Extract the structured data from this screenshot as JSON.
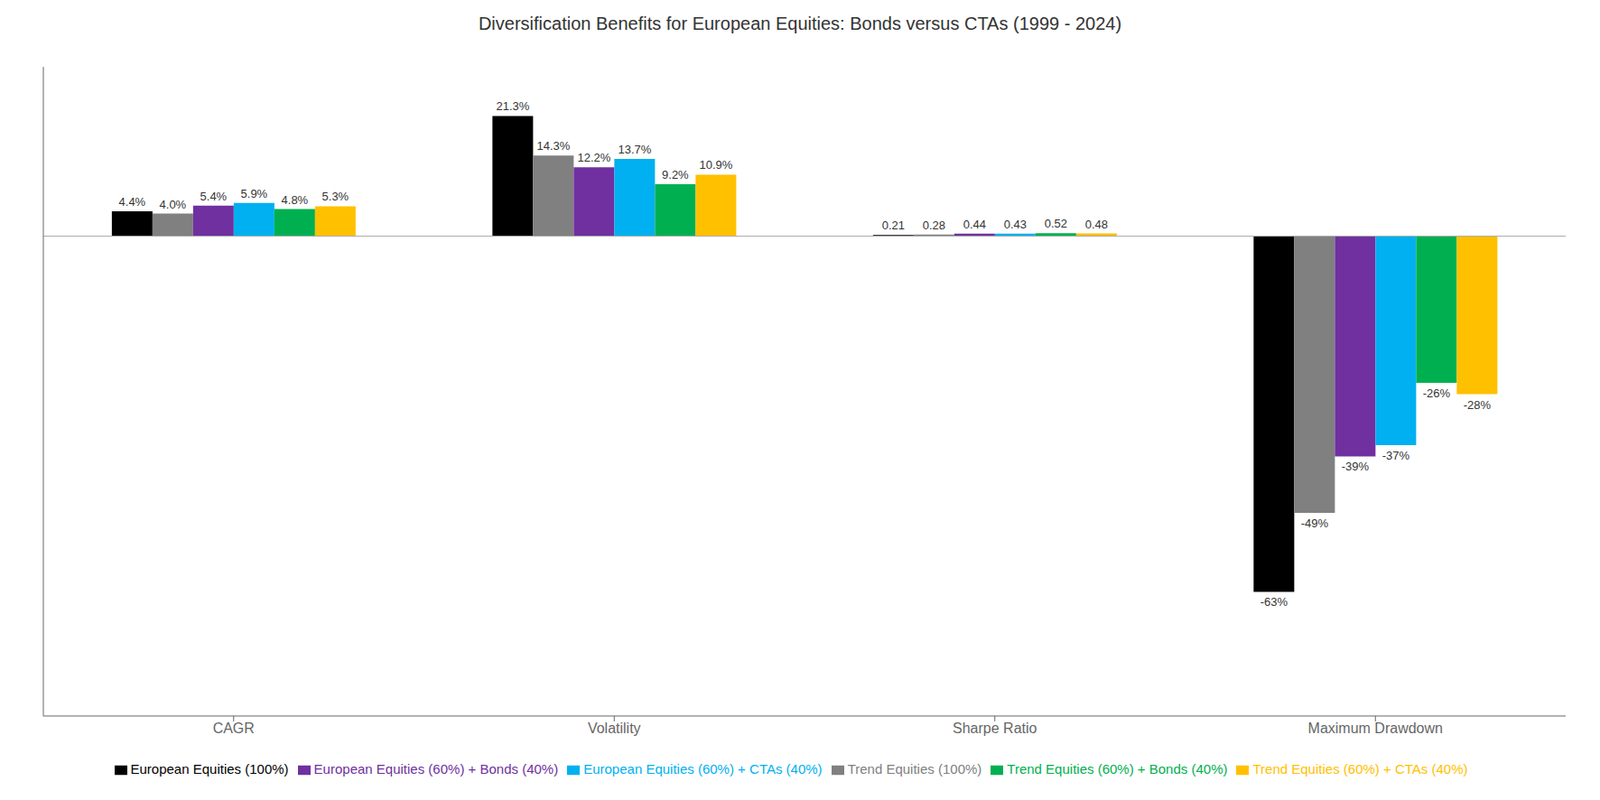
{
  "chart_data": {
    "type": "bar",
    "title": "Diversification Benefits for European Equities: Bonds versus CTAs (1999 - 2024)",
    "categories": [
      "CAGR",
      "Volatility",
      "Sharpe Ratio",
      "Maximum Drawdown"
    ],
    "series": [
      {
        "name": "European Equities (100%)",
        "color": "#000000",
        "values": [
          4.4,
          21.3,
          0.21,
          -63
        ],
        "value_labels": [
          "4.4%",
          "21.3%",
          "0.21",
          "-63%"
        ]
      },
      {
        "name": "Trend Equities (100%)",
        "color": "#808080",
        "values": [
          4.0,
          14.3,
          0.28,
          -49
        ],
        "value_labels": [
          "4.0%",
          "14.3%",
          "0.28",
          "-49%"
        ]
      },
      {
        "name": "European Equities (60%) + Bonds (40%)",
        "color": "#7030A0",
        "values": [
          5.4,
          12.2,
          0.44,
          -39
        ],
        "value_labels": [
          "5.4%",
          "12.2%",
          "0.44",
          "-39%"
        ]
      },
      {
        "name": "European Equities (60%) + CTAs (40%)",
        "color": "#00B0F0",
        "values": [
          5.9,
          13.7,
          0.43,
          -37
        ],
        "value_labels": [
          "5.9%",
          "13.7%",
          "0.43",
          "-37%"
        ]
      },
      {
        "name": "Trend Equities (60%) + Bonds (40%)",
        "color": "#00B050",
        "values": [
          4.8,
          9.2,
          0.52,
          -26
        ],
        "value_labels": [
          "4.8%",
          "9.2%",
          "0.52",
          "-26%"
        ]
      },
      {
        "name": "Trend Equities (60%) + CTAs (40%)",
        "color": "#FFC000",
        "values": [
          5.3,
          10.9,
          0.48,
          -28
        ],
        "value_labels": [
          "5.3%",
          "10.9%",
          "0.48",
          "-28%"
        ]
      }
    ],
    "ylim": [
      -85,
      30
    ],
    "data_labels": true,
    "tick_labels": "x",
    "legend": "bottom"
  }
}
